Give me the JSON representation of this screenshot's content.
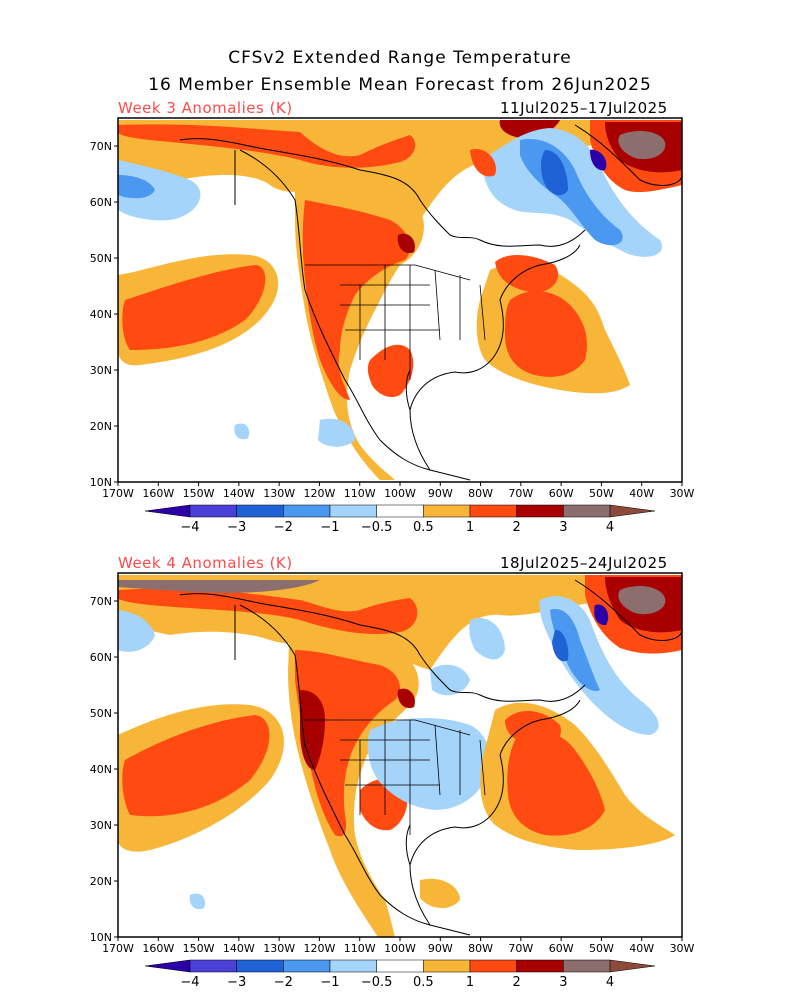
{
  "header": {
    "title_line1": "CFSv2 Extended Range Temperature",
    "title_line2": "16 Member Ensemble Mean Forecast from 26Jun2025"
  },
  "panels": [
    {
      "label": "Week 3 Anomalies (K)",
      "dates": "11Jul2025–17Jul2025"
    },
    {
      "label": "Week 4 Anomalies (K)",
      "dates": "18Jul2025–24Jul2025"
    }
  ],
  "axes": {
    "lat_labels": [
      "70N",
      "60N",
      "50N",
      "40N",
      "30N",
      "20N",
      "10N"
    ],
    "lon_labels": [
      "170W",
      "160W",
      "150W",
      "140W",
      "130W",
      "120W",
      "110W",
      "100W",
      "90W",
      "80W",
      "70W",
      "60W",
      "50W",
      "40W",
      "30W"
    ]
  },
  "colorbar": {
    "labels": [
      "−4",
      "−3",
      "−2",
      "−1",
      "−0.5",
      "0.5",
      "1",
      "2",
      "3",
      "4"
    ],
    "colors": [
      "#2b00a6",
      "#4a40d8",
      "#1f62d6",
      "#4b98f0",
      "#a5d4fa",
      "#ffffff",
      "#f8b638",
      "#ff4a12",
      "#a80000",
      "#8c6e6e",
      "#8c4a3a"
    ]
  },
  "colors": {
    "warm1": "#f8b638",
    "warm2": "#ff4a12",
    "warm3": "#a80000",
    "warm4": "#8c6e6e",
    "cool1": "#a5d4fa",
    "cool2": "#4b98f0",
    "cool3": "#1f62d6",
    "cool4": "#2b00a6"
  }
}
